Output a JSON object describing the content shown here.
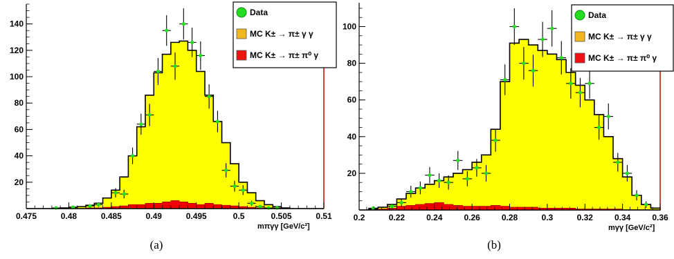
{
  "captions": [
    "(a)",
    "(b)"
  ],
  "legend": {
    "items": [
      {
        "label": "Data",
        "marker": "circle",
        "color": "#22dd22"
      },
      {
        "label": "MC K± → π± γ γ",
        "marker": "box",
        "color": "#f2b720"
      },
      {
        "label": "MC K± → π± π⁰ γ",
        "marker": "box",
        "color": "#ee1111"
      }
    ]
  },
  "colors": {
    "mc_pigg_fill": "#ffff00",
    "mc_pipi0g_fill": "#ee0000",
    "data_marker": "#22dd22",
    "line": "#000000",
    "frame_right": "#cc0000"
  },
  "chart_data": [
    {
      "type": "histogram",
      "panel": "a",
      "xlabel": "mπγγ [GeV/c²]",
      "xlim": [
        0.475,
        0.51
      ],
      "ylim": [
        0,
        155
      ],
      "xticks": [
        0.475,
        0.48,
        0.485,
        0.49,
        0.495,
        0.5,
        0.505,
        0.51
      ],
      "xtick_labels": [
        "0.475",
        "0.48",
        "0.485",
        "0.49",
        "0.495",
        "0.5",
        "0.505",
        "0.51"
      ],
      "yticks": [
        20,
        40,
        60,
        80,
        100,
        120,
        140
      ],
      "ytick_labels": [
        "20",
        "40",
        "60",
        "80",
        "100",
        "120",
        "140"
      ],
      "bin_edges": [
        0.475,
        0.476,
        0.477,
        0.478,
        0.479,
        0.48,
        0.481,
        0.482,
        0.483,
        0.484,
        0.485,
        0.486,
        0.487,
        0.488,
        0.489,
        0.49,
        0.491,
        0.492,
        0.493,
        0.494,
        0.495,
        0.496,
        0.497,
        0.498,
        0.499,
        0.5,
        0.501,
        0.502,
        0.503,
        0.504,
        0.505,
        0.506,
        0.507,
        0.508,
        0.509,
        0.51
      ],
      "series": [
        {
          "name": "MC K± → π± γ γ",
          "role": "mc_total",
          "values": [
            0,
            0,
            0,
            0,
            0.5,
            1,
            1.5,
            2.5,
            4,
            8,
            14,
            24,
            40,
            62,
            86,
            103,
            117,
            126,
            127,
            120,
            104,
            86,
            66,
            50,
            34,
            20,
            12,
            6,
            3,
            1.5,
            0.5,
            0,
            0,
            0,
            0
          ]
        },
        {
          "name": "MC K± → π± π⁰ γ",
          "role": "mc_background",
          "values": [
            0,
            0,
            0,
            0,
            0,
            0,
            0,
            0.5,
            0.5,
            1,
            1.5,
            2,
            3,
            3,
            4,
            4,
            5,
            6,
            5,
            4,
            3,
            4,
            3,
            2.5,
            2,
            1.5,
            1,
            0.5,
            0.5,
            0,
            0,
            0,
            0,
            0,
            0
          ]
        },
        {
          "name": "Data",
          "role": "data",
          "x": [
            0.4785,
            0.4805,
            0.4825,
            0.4835,
            0.4855,
            0.4865,
            0.4875,
            0.4885,
            0.4895,
            0.4905,
            0.4915,
            0.4925,
            0.4935,
            0.4945,
            0.4955,
            0.4965,
            0.4975,
            0.4985,
            0.4995,
            0.5005,
            0.5015,
            0.5025,
            0.5035,
            0.5045
          ],
          "y": [
            0.5,
            1,
            2,
            3,
            12,
            11,
            40,
            64,
            71,
            104,
            135,
            108,
            140,
            126,
            116,
            85,
            66,
            29,
            17,
            14,
            4,
            1.5,
            0.5,
            0.5
          ],
          "err": [
            0.7,
            1,
            1.4,
            1.7,
            3.5,
            3.3,
            6.3,
            8,
            8.4,
            10.2,
            11.6,
            10.4,
            11.8,
            11.2,
            10.8,
            9.2,
            8.1,
            5.4,
            4.1,
            3.7,
            2,
            1.2,
            0.7,
            0.7
          ]
        }
      ]
    },
    {
      "type": "histogram",
      "panel": "b",
      "xlabel": "mγγ [GeV/c²]",
      "xlim": [
        0.2,
        0.36
      ],
      "ylim": [
        0,
        113
      ],
      "xticks": [
        0.2,
        0.22,
        0.24,
        0.26,
        0.28,
        0.3,
        0.32,
        0.34,
        0.36
      ],
      "xtick_labels": [
        "0.2",
        "0.22",
        "0.24",
        "0.26",
        "0.28",
        "0.3",
        "0.32",
        "0.34",
        "0.36"
      ],
      "yticks": [
        20,
        40,
        60,
        80,
        100
      ],
      "ytick_labels": [
        "20",
        "40",
        "60",
        "80",
        "100"
      ],
      "bin_edges": [
        0.2,
        0.205,
        0.21,
        0.215,
        0.22,
        0.225,
        0.23,
        0.235,
        0.24,
        0.245,
        0.25,
        0.255,
        0.26,
        0.265,
        0.27,
        0.275,
        0.28,
        0.285,
        0.29,
        0.295,
        0.3,
        0.305,
        0.31,
        0.315,
        0.32,
        0.325,
        0.33,
        0.335,
        0.34,
        0.345,
        0.35,
        0.355,
        0.36
      ],
      "series": [
        {
          "name": "MC K± → π± γ γ",
          "role": "mc_total",
          "values": [
            0,
            0.5,
            1.5,
            3,
            6,
            9,
            12,
            14,
            16,
            18,
            20,
            22,
            26,
            30,
            44,
            70,
            91,
            93,
            90,
            87,
            85,
            82,
            75,
            68,
            60,
            52,
            40,
            28,
            18,
            8,
            3,
            1
          ]
        },
        {
          "name": "MC K± → π± π⁰ γ",
          "role": "mc_background",
          "values": [
            0,
            0,
            0.5,
            1,
            2,
            2.5,
            3,
            3.5,
            4,
            3,
            2.5,
            2,
            2,
            2,
            2.5,
            2,
            1.5,
            1.5,
            1.5,
            1,
            1,
            1,
            1,
            0.5,
            0.5,
            0.5,
            0.5,
            0.5,
            0,
            0,
            0,
            0
          ]
        },
        {
          "name": "Data",
          "role": "data",
          "x": [
            0.2075,
            0.2175,
            0.2225,
            0.2275,
            0.2325,
            0.2375,
            0.2425,
            0.2475,
            0.2525,
            0.2575,
            0.2625,
            0.2675,
            0.2725,
            0.2775,
            0.2825,
            0.2875,
            0.2925,
            0.2975,
            0.3025,
            0.3075,
            0.3125,
            0.3175,
            0.3225,
            0.3275,
            0.3325,
            0.3375,
            0.3425,
            0.3475,
            0.3525
          ],
          "y": [
            1,
            2,
            4,
            10,
            12,
            19,
            16,
            15,
            27,
            17,
            23,
            20,
            38,
            71,
            100,
            80,
            76,
            93,
            99,
            83,
            69,
            64,
            69,
            45,
            51,
            26,
            20,
            8,
            3
          ],
          "err": [
            1,
            1.4,
            2,
            3.2,
            3.5,
            4.4,
            4,
            3.9,
            5.2,
            4.1,
            4.8,
            4.5,
            6.2,
            8.4,
            10,
            8.9,
            8.7,
            9.6,
            9.9,
            9.1,
            8.3,
            8,
            8.3,
            6.7,
            7.1,
            5.1,
            4.5,
            2.8,
            1.7
          ]
        }
      ]
    }
  ]
}
